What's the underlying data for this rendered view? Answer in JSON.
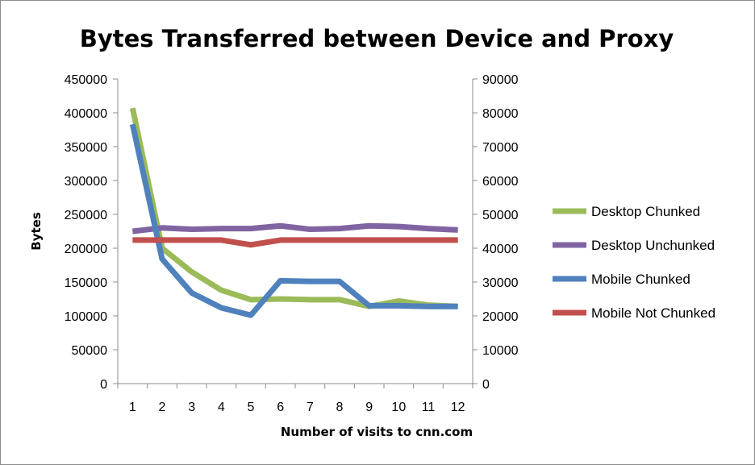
{
  "chart_data": {
    "type": "line",
    "title": "Bytes Transferred between Device and Proxy",
    "xlabel": "Number of visits to cnn.com",
    "ylabel": "Bytes",
    "categories": [
      "1",
      "2",
      "3",
      "4",
      "5",
      "6",
      "7",
      "8",
      "9",
      "10",
      "11",
      "12"
    ],
    "ylim": [
      0,
      450000
    ],
    "y_ticks": [
      "0",
      "50000",
      "100000",
      "150000",
      "200000",
      "250000",
      "300000",
      "350000",
      "400000",
      "450000"
    ],
    "y2lim": [
      0,
      90000
    ],
    "y2_ticks": [
      "0",
      "10000",
      "20000",
      "30000",
      "40000",
      "50000",
      "60000",
      "70000",
      "80000",
      "90000"
    ],
    "legend_position": "right",
    "series": [
      {
        "name": "Desktop Chunked",
        "color": "#9bbb59",
        "axis": "left",
        "values": [
          407000,
          200000,
          165000,
          138000,
          124000,
          125000,
          124000,
          124000,
          114000,
          122000,
          116000,
          114000
        ]
      },
      {
        "name": "Desktop Unchunked",
        "color": "#8064a2",
        "axis": "left",
        "values": [
          225000,
          230000,
          228000,
          229000,
          229000,
          233000,
          228000,
          229000,
          233000,
          232000,
          229000,
          227000
        ]
      },
      {
        "name": "Mobile Chunked",
        "color": "#4f81bd",
        "axis": "left",
        "values": [
          383000,
          184000,
          134000,
          112000,
          101000,
          152000,
          151000,
          151000,
          115000,
          115000,
          114000,
          114000
        ]
      },
      {
        "name": "Mobile Not Chunked",
        "color": "#c0504d",
        "axis": "left",
        "values": [
          212000,
          212000,
          212000,
          212000,
          205000,
          212000,
          212000,
          212000,
          212000,
          212000,
          212000,
          212000
        ]
      }
    ]
  }
}
